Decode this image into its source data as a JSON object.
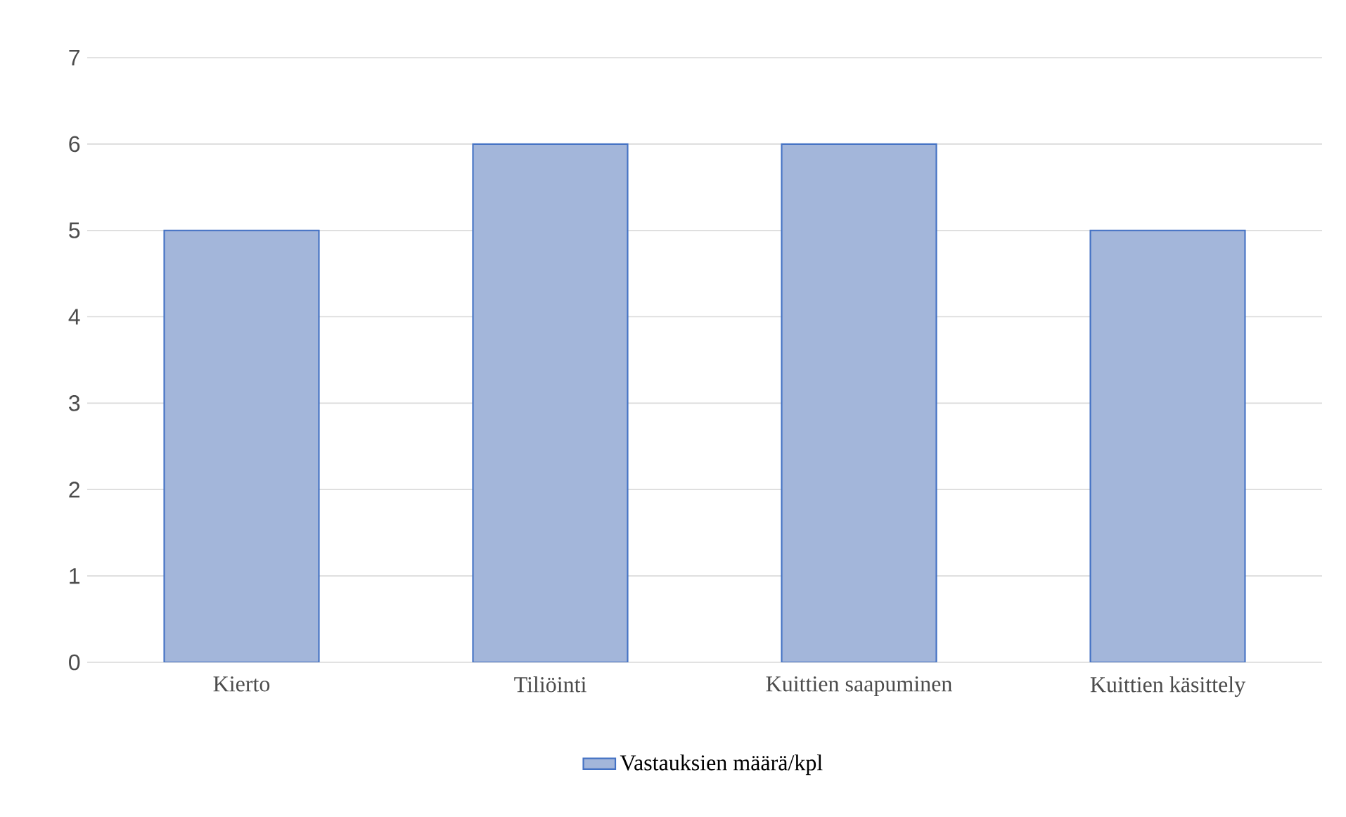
{
  "chart_data": {
    "type": "bar",
    "categories": [
      "Kierto",
      "Tiliöinti",
      "Kuittien saapuminen",
      "Kuittien käsittely"
    ],
    "series": [
      {
        "name": "Vastauksien määrä/kpl",
        "color": "#a3b6da",
        "values": [
          5,
          6,
          6,
          5
        ]
      }
    ],
    "ylim": [
      0,
      7
    ],
    "yticks": [
      0,
      1,
      2,
      3,
      4,
      5,
      6,
      7
    ],
    "grid": "y",
    "legend": "bottom"
  }
}
